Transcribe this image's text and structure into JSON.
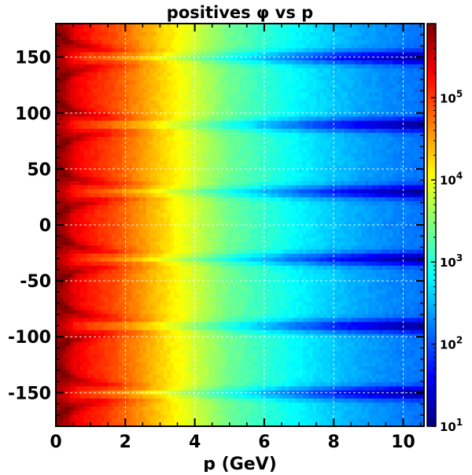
{
  "chart_data": {
    "type": "heatmap",
    "title": "positives φ vs p",
    "xlabel": "p (GeV)",
    "ylabel": "",
    "xlim": [
      0,
      10.6
    ],
    "ylim": [
      -180,
      180
    ],
    "x_ticks": [
      {
        "value": 0,
        "label": "0"
      },
      {
        "value": 2,
        "label": "2"
      },
      {
        "value": 4,
        "label": "4"
      },
      {
        "value": 6,
        "label": "6"
      },
      {
        "value": 8,
        "label": "8"
      },
      {
        "value": 10,
        "label": "10"
      }
    ],
    "y_ticks": [
      {
        "value": 150,
        "label": "150"
      },
      {
        "value": 100,
        "label": "100"
      },
      {
        "value": 50,
        "label": "50"
      },
      {
        "value": 0,
        "label": "0"
      },
      {
        "value": -50,
        "label": "-50"
      },
      {
        "value": -100,
        "label": "-100"
      },
      {
        "value": -150,
        "label": "-150"
      }
    ],
    "colorbar": {
      "scale": "log",
      "range": [
        10,
        800000
      ],
      "ticks": [
        {
          "value": 10,
          "base": "10",
          "exp": "1"
        },
        {
          "value": 100,
          "base": "10",
          "exp": "2"
        },
        {
          "value": 1000,
          "base": "10",
          "exp": "3"
        },
        {
          "value": 10000,
          "base": "10",
          "exp": "4"
        },
        {
          "value": 100000,
          "base": "10",
          "exp": "5"
        }
      ],
      "colormap": [
        "#00007f",
        "#0000ff",
        "#007fff",
        "#00ffff",
        "#7fff7f",
        "#ffff00",
        "#ff7f00",
        "#ff0000",
        "#7f0000"
      ]
    },
    "grid": true,
    "p_profile": {
      "p": [
        0.1,
        0.3,
        0.5,
        1,
        1.5,
        2,
        2.5,
        3,
        3.5,
        4,
        4.5,
        5,
        6,
        7,
        8,
        9,
        10,
        10.5
      ],
      "counts": [
        600000,
        450000,
        250000,
        150000,
        100000,
        60000,
        35000,
        20000,
        12000,
        7000,
        4000,
        2400,
        1200,
        650,
        380,
        240,
        170,
        150
      ]
    },
    "sector_boundaries_phi": [
      -150,
      -90,
      -30,
      30,
      90,
      150
    ]
  }
}
